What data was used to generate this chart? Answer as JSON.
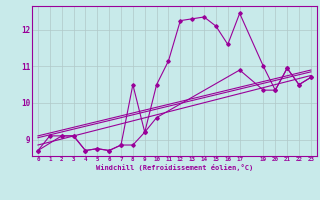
{
  "xlabel": "Windchill (Refroidissement éolien,°C)",
  "bg_color": "#c8eaea",
  "line_color": "#990099",
  "grid_color": "#b0c8c8",
  "xlim": [
    -0.5,
    23.5
  ],
  "ylim": [
    8.55,
    12.65
  ],
  "xticks": [
    0,
    1,
    2,
    3,
    4,
    5,
    6,
    7,
    8,
    9,
    10,
    11,
    12,
    13,
    14,
    15,
    16,
    17,
    19,
    20,
    21,
    22,
    23
  ],
  "yticks": [
    9,
    10,
    11,
    12
  ],
  "line1_x": [
    0,
    1,
    2,
    3,
    4,
    5,
    6,
    7,
    8,
    9,
    10,
    11,
    12,
    13,
    14,
    15,
    16,
    17,
    19,
    20,
    21,
    22,
    23
  ],
  "line1_y": [
    8.7,
    9.1,
    9.1,
    9.1,
    8.7,
    8.75,
    8.7,
    8.85,
    10.5,
    9.2,
    10.5,
    11.15,
    12.25,
    12.3,
    12.35,
    12.1,
    11.6,
    12.45,
    11.0,
    10.35,
    10.95,
    10.5,
    10.7
  ],
  "line2_x": [
    0,
    2,
    3,
    4,
    5,
    6,
    7,
    8,
    9,
    10,
    17,
    19,
    20,
    21,
    22,
    23
  ],
  "line2_y": [
    8.7,
    9.1,
    9.1,
    8.7,
    8.75,
    8.7,
    8.85,
    8.85,
    9.2,
    9.6,
    10.9,
    10.35,
    10.35,
    10.95,
    10.5,
    10.7
  ],
  "line3_x": [
    0,
    23
  ],
  "line3_y": [
    8.85,
    10.75
  ],
  "line4_x": [
    0,
    23
  ],
  "line4_y": [
    9.05,
    10.85
  ],
  "line5_x": [
    0,
    23
  ],
  "line5_y": [
    9.1,
    10.9
  ]
}
